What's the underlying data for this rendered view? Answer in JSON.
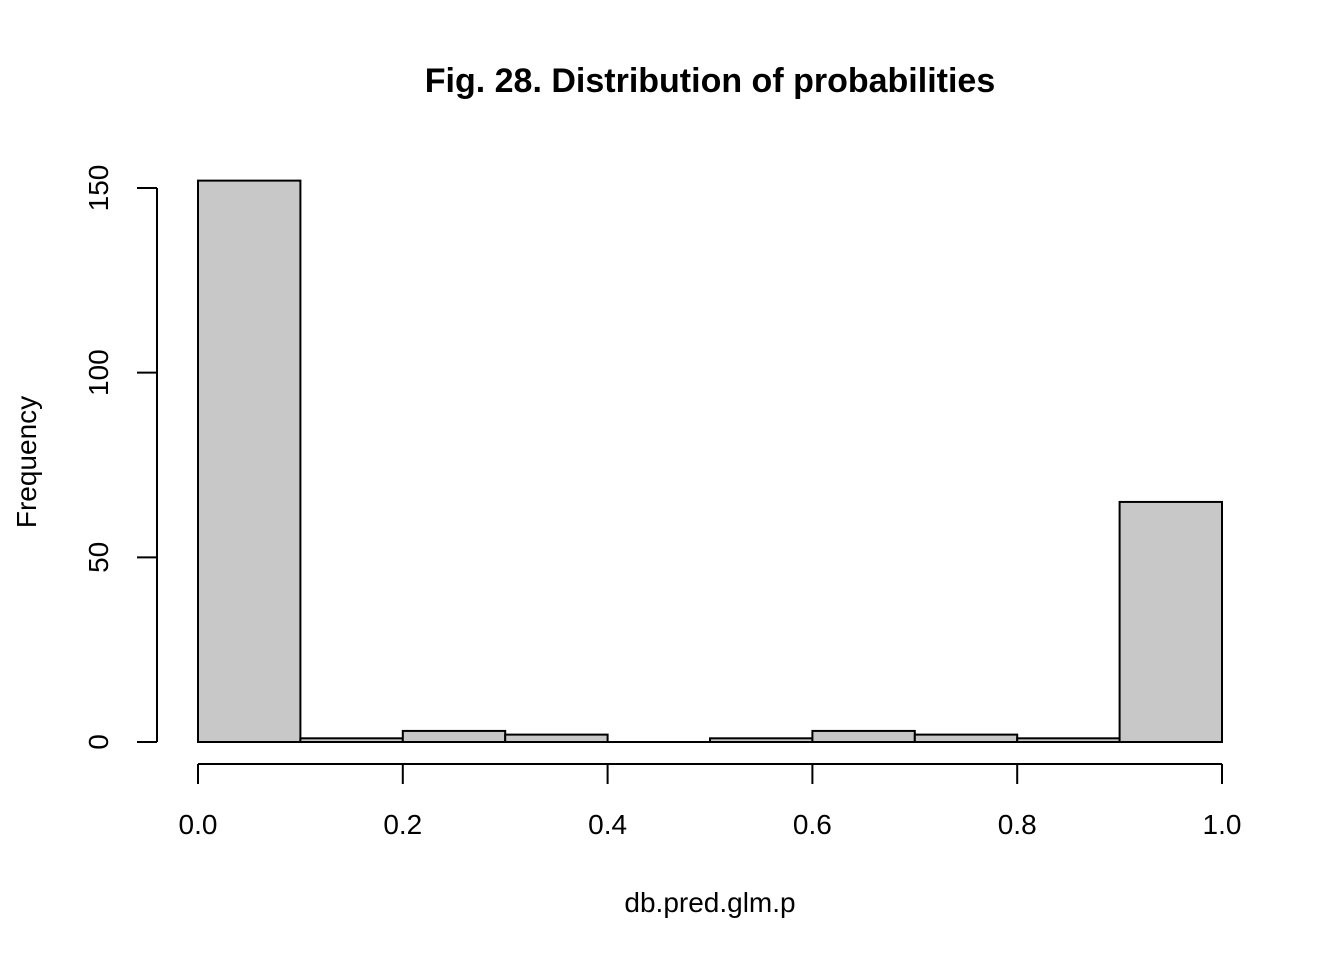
{
  "chart_data": {
    "type": "bar",
    "title": "Fig. 28. Distribution of probabilities",
    "xlabel": "db.pred.glm.p",
    "ylabel": "Frequency",
    "bins": [
      {
        "x0": 0.0,
        "x1": 0.1,
        "count": 152
      },
      {
        "x0": 0.1,
        "x1": 0.2,
        "count": 1
      },
      {
        "x0": 0.2,
        "x1": 0.3,
        "count": 3
      },
      {
        "x0": 0.3,
        "x1": 0.4,
        "count": 2
      },
      {
        "x0": 0.4,
        "x1": 0.5,
        "count": 0
      },
      {
        "x0": 0.5,
        "x1": 0.6,
        "count": 1
      },
      {
        "x0": 0.6,
        "x1": 0.7,
        "count": 3
      },
      {
        "x0": 0.7,
        "x1": 0.8,
        "count": 2
      },
      {
        "x0": 0.8,
        "x1": 0.9,
        "count": 1
      },
      {
        "x0": 0.9,
        "x1": 1.0,
        "count": 65
      }
    ],
    "xlim": [
      0,
      1
    ],
    "ylim": [
      0,
      150
    ],
    "x_ticks": [
      "0.0",
      "0.2",
      "0.4",
      "0.6",
      "0.8",
      "1.0"
    ],
    "x_tick_values": [
      0,
      0.2,
      0.4,
      0.6,
      0.8,
      1.0
    ],
    "y_ticks": [
      "0",
      "50",
      "100",
      "150"
    ],
    "y_tick_values": [
      0,
      50,
      100,
      150
    ],
    "grid": false,
    "legend": "none",
    "bar_color": "#c8c8c8",
    "border_color": "#000000"
  }
}
